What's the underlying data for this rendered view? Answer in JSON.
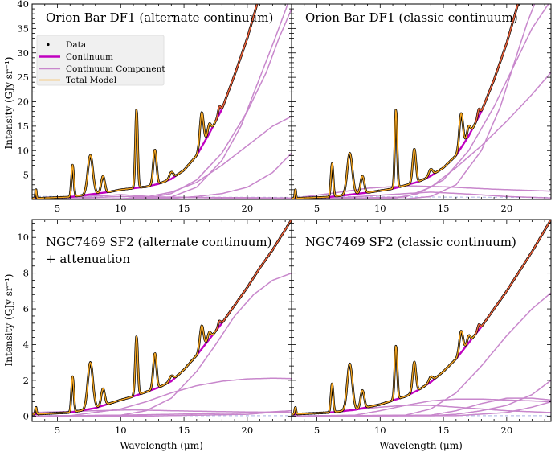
{
  "chart_data": [
    {
      "type": "line",
      "title": "Orion Bar DF1 (alternate continuum)",
      "title_line2": "",
      "xlabel": "",
      "ylabel": "Intensity (GJy sr⁻¹)",
      "xlim": [
        3,
        23.5
      ],
      "ylim": [
        0,
        40
      ],
      "xticks": [
        5,
        10,
        15,
        20
      ],
      "yticks": [
        5,
        10,
        15,
        20,
        25,
        30,
        35,
        40
      ],
      "legend": {
        "position": "upper-left",
        "entries": [
          "Data",
          "Continuum",
          "Continuum Component",
          "Total Model"
        ]
      },
      "features": [
        {
          "x": 3.3,
          "h": 2.0,
          "w": 0.04
        },
        {
          "x": 6.2,
          "h": 6.5,
          "w": 0.09
        },
        {
          "x": 7.6,
          "h": 8.0,
          "w": 0.2
        },
        {
          "x": 8.6,
          "h": 3.4,
          "w": 0.14
        },
        {
          "x": 11.25,
          "h": 16.0,
          "w": 0.09
        },
        {
          "x": 12.7,
          "h": 7.2,
          "w": 0.13
        },
        {
          "x": 14.0,
          "h": 1.4,
          "w": 0.15
        },
        {
          "x": 16.4,
          "h": 7.0,
          "w": 0.14
        },
        {
          "x": 17.0,
          "h": 2.0,
          "w": 0.12
        },
        {
          "x": 17.8,
          "h": 1.5,
          "w": 0.1
        }
      ],
      "continuum": [
        [
          3,
          0.2
        ],
        [
          6,
          0.5
        ],
        [
          9,
          1.5
        ],
        [
          10,
          2.0
        ],
        [
          11,
          2.3
        ],
        [
          12,
          2.6
        ],
        [
          13,
          3.2
        ],
        [
          14,
          4.2
        ],
        [
          15,
          6.0
        ],
        [
          16,
          9.0
        ],
        [
          17,
          13.5
        ],
        [
          18,
          18.5
        ],
        [
          19,
          25.5
        ],
        [
          20,
          33.0
        ],
        [
          21,
          42.0
        ]
      ],
      "components": [
        [
          [
            3,
            0.2
          ],
          [
            8,
            0.4
          ],
          [
            10,
            0.6
          ],
          [
            12,
            0.5
          ],
          [
            15,
            0.4
          ],
          [
            20,
            0.2
          ],
          [
            23.5,
            0.1
          ]
        ],
        [
          [
            3,
            0.3
          ],
          [
            9,
            0.8
          ],
          [
            10,
            1.0
          ],
          [
            11,
            0.8
          ],
          [
            13,
            0.5
          ],
          [
            17,
            0.4
          ],
          [
            23.5,
            0.3
          ]
        ],
        [
          [
            3,
            0
          ],
          [
            10,
            0.1
          ],
          [
            12,
            0.5
          ],
          [
            14,
            1.5
          ],
          [
            16,
            3.5
          ],
          [
            18,
            7.0
          ],
          [
            20,
            11.0
          ],
          [
            22,
            15.0
          ],
          [
            23.5,
            17.0
          ]
        ],
        [
          [
            3,
            0
          ],
          [
            14,
            0.2
          ],
          [
            16,
            0.6
          ],
          [
            18,
            1.2
          ],
          [
            20,
            2.5
          ],
          [
            22,
            5.5
          ],
          [
            23.5,
            9.5
          ]
        ],
        [
          [
            3,
            0
          ],
          [
            12,
            0.2
          ],
          [
            14,
            1.2
          ],
          [
            16,
            4.0
          ],
          [
            18,
            9.5
          ],
          [
            20,
            18.0
          ],
          [
            21.5,
            26.0
          ],
          [
            22.5,
            33.0
          ],
          [
            23.5,
            39.0
          ]
        ],
        [
          [
            3,
            0
          ],
          [
            12,
            0.1
          ],
          [
            14,
            0.5
          ],
          [
            16,
            2.5
          ],
          [
            18,
            8.0
          ],
          [
            19.5,
            15.0
          ],
          [
            21,
            25.0
          ],
          [
            22.2,
            33.0
          ],
          [
            23.2,
            40.0
          ]
        ]
      ],
      "dashed": [
        [
          3,
          0.6
        ],
        [
          23.5,
          0.4
        ]
      ]
    },
    {
      "type": "line",
      "title": "Orion Bar DF1 (classic continuum)",
      "title_line2": "",
      "xlabel": "",
      "ylabel": "",
      "xlim": [
        3,
        23.5
      ],
      "ylim": [
        0,
        40
      ],
      "xticks": [
        5,
        10,
        15,
        20
      ],
      "yticks": [
        5,
        10,
        15,
        20,
        25,
        30,
        35,
        40
      ],
      "features": [
        {
          "x": 3.3,
          "h": 2.0,
          "w": 0.04
        },
        {
          "x": 6.2,
          "h": 6.8,
          "w": 0.09
        },
        {
          "x": 7.6,
          "h": 8.5,
          "w": 0.2
        },
        {
          "x": 8.6,
          "h": 3.5,
          "w": 0.14
        },
        {
          "x": 11.25,
          "h": 16.0,
          "w": 0.09
        },
        {
          "x": 12.7,
          "h": 7.0,
          "w": 0.13
        },
        {
          "x": 14.0,
          "h": 1.4,
          "w": 0.15
        },
        {
          "x": 16.4,
          "h": 7.0,
          "w": 0.14
        },
        {
          "x": 17.0,
          "h": 2.0,
          "w": 0.12
        },
        {
          "x": 17.8,
          "h": 1.5,
          "w": 0.1
        }
      ],
      "continuum": [
        [
          3,
          0.2
        ],
        [
          6,
          0.5
        ],
        [
          9,
          1.4
        ],
        [
          11,
          2.2
        ],
        [
          13,
          3.6
        ],
        [
          14,
          4.8
        ],
        [
          15,
          6.5
        ],
        [
          16,
          9.0
        ],
        [
          17,
          13.0
        ],
        [
          18,
          18.0
        ],
        [
          19,
          24.5
        ],
        [
          20,
          32.0
        ],
        [
          21,
          41.0
        ]
      ],
      "components": [
        [
          [
            3,
            0.2
          ],
          [
            6,
            1.2
          ],
          [
            9,
            2.3
          ],
          [
            12,
            2.8
          ],
          [
            15,
            2.6
          ],
          [
            19,
            2.1
          ],
          [
            23.5,
            1.7
          ]
        ],
        [
          [
            3,
            0
          ],
          [
            6,
            0.2
          ],
          [
            9,
            0.7
          ],
          [
            12,
            1.2
          ],
          [
            14,
            1.5
          ],
          [
            17,
            1.1
          ],
          [
            20,
            0.6
          ],
          [
            23.5,
            0.3
          ]
        ],
        [
          [
            3,
            0
          ],
          [
            12,
            0.5
          ],
          [
            14,
            2.5
          ],
          [
            16,
            6.5
          ],
          [
            18,
            11.0
          ],
          [
            20,
            16.0
          ],
          [
            22,
            21.5
          ],
          [
            23.5,
            26.0
          ]
        ],
        [
          [
            3,
            0
          ],
          [
            11,
            0.2
          ],
          [
            13,
            1.2
          ],
          [
            15,
            4.0
          ],
          [
            17,
            10.0
          ],
          [
            19,
            19.0
          ],
          [
            20.5,
            27.0
          ],
          [
            22,
            35.0
          ],
          [
            23.3,
            40.0
          ]
        ],
        [
          [
            3,
            0
          ],
          [
            12,
            0.1
          ],
          [
            14,
            0.6
          ],
          [
            16,
            3.0
          ],
          [
            18,
            10.0
          ],
          [
            19.5,
            19.0
          ],
          [
            20.6,
            28.0
          ],
          [
            21.6,
            36.0
          ],
          [
            22.2,
            40.0
          ]
        ]
      ],
      "dashed": [
        [
          3,
          0.6
        ],
        [
          23.5,
          0.4
        ]
      ]
    },
    {
      "type": "line",
      "title": "NGC7469 SF2 (alternate continuum)",
      "title_line2": "+ attenuation",
      "xlabel": "Wavelength (μm)",
      "ylabel": "Intensity (GJy sr⁻¹)",
      "xlim": [
        3,
        23.5
      ],
      "ylim": [
        -0.3,
        11
      ],
      "xticks": [
        5,
        10,
        15,
        20
      ],
      "yticks": [
        0,
        2,
        4,
        6,
        8,
        10
      ],
      "features": [
        {
          "x": 3.3,
          "h": 0.4,
          "w": 0.05
        },
        {
          "x": 6.2,
          "h": 2.0,
          "w": 0.09
        },
        {
          "x": 7.6,
          "h": 2.6,
          "w": 0.2
        },
        {
          "x": 8.6,
          "h": 0.95,
          "w": 0.14
        },
        {
          "x": 11.25,
          "h": 3.3,
          "w": 0.1
        },
        {
          "x": 12.7,
          "h": 2.0,
          "w": 0.13
        },
        {
          "x": 14.0,
          "h": 0.3,
          "w": 0.15
        },
        {
          "x": 16.4,
          "h": 1.3,
          "w": 0.14
        },
        {
          "x": 17.0,
          "h": 0.4,
          "w": 0.12
        },
        {
          "x": 17.8,
          "h": 0.3,
          "w": 0.1
        }
      ],
      "continuum": [
        [
          3,
          0.1
        ],
        [
          6,
          0.2
        ],
        [
          8,
          0.45
        ],
        [
          10,
          0.9
        ],
        [
          11,
          1.1
        ],
        [
          12,
          1.35
        ],
        [
          13,
          1.6
        ],
        [
          14,
          1.95
        ],
        [
          15,
          2.6
        ],
        [
          16,
          3.4
        ],
        [
          17,
          4.3
        ],
        [
          18,
          5.2
        ],
        [
          19,
          6.2
        ],
        [
          20,
          7.2
        ],
        [
          21,
          8.3
        ],
        [
          22,
          9.3
        ],
        [
          23.5,
          11.0
        ]
      ],
      "components": [
        [
          [
            3,
            0
          ],
          [
            6,
            0.02
          ],
          [
            10,
            0.4
          ],
          [
            12,
            0.8
          ],
          [
            14,
            1.3
          ],
          [
            16,
            1.7
          ],
          [
            18,
            1.95
          ],
          [
            20,
            2.08
          ],
          [
            22,
            2.12
          ],
          [
            23.5,
            2.1
          ]
        ],
        [
          [
            3,
            0
          ],
          [
            10,
            0.05
          ],
          [
            12,
            0.3
          ],
          [
            14,
            1.0
          ],
          [
            16,
            2.5
          ],
          [
            17.5,
            4.0
          ],
          [
            19,
            5.6
          ],
          [
            20.5,
            6.8
          ],
          [
            22,
            7.6
          ],
          [
            23.5,
            8.0
          ]
        ],
        [
          [
            3,
            0.2
          ],
          [
            8,
            0.3
          ],
          [
            11,
            0.35
          ],
          [
            14,
            0.3
          ],
          [
            18,
            0.25
          ],
          [
            23.5,
            0.2
          ]
        ],
        [
          [
            3,
            0
          ],
          [
            10,
            0.05
          ],
          [
            14,
            0.1
          ],
          [
            18,
            0.15
          ],
          [
            21,
            0.2
          ],
          [
            23.5,
            0.3
          ]
        ],
        [
          [
            3,
            0
          ],
          [
            12,
            0
          ],
          [
            16,
            0.05
          ],
          [
            20,
            0.1
          ],
          [
            23.5,
            0.3
          ]
        ]
      ],
      "dashed": [
        [
          3,
          0.02
        ],
        [
          23.5,
          0.02
        ]
      ]
    },
    {
      "type": "line",
      "title": "NGC7469 SF2 (classic continuum)",
      "title_line2": "",
      "xlabel": "Wavelength (μm)",
      "ylabel": "",
      "xlim": [
        3,
        23.5
      ],
      "ylim": [
        -0.3,
        11
      ],
      "xticks": [
        5,
        10,
        15,
        20
      ],
      "yticks": [
        0,
        2,
        4,
        6,
        8,
        10
      ],
      "features": [
        {
          "x": 3.3,
          "h": 0.4,
          "w": 0.05
        },
        {
          "x": 6.2,
          "h": 1.6,
          "w": 0.09
        },
        {
          "x": 7.6,
          "h": 2.6,
          "w": 0.2
        },
        {
          "x": 8.6,
          "h": 1.0,
          "w": 0.14
        },
        {
          "x": 11.25,
          "h": 3.0,
          "w": 0.1
        },
        {
          "x": 12.7,
          "h": 1.7,
          "w": 0.13
        },
        {
          "x": 14.0,
          "h": 0.3,
          "w": 0.15
        },
        {
          "x": 16.4,
          "h": 1.2,
          "w": 0.14
        },
        {
          "x": 17.0,
          "h": 0.4,
          "w": 0.12
        },
        {
          "x": 17.8,
          "h": 0.3,
          "w": 0.1
        }
      ],
      "continuum": [
        [
          3,
          0.1
        ],
        [
          6,
          0.2
        ],
        [
          8,
          0.35
        ],
        [
          10,
          0.65
        ],
        [
          12,
          1.1
        ],
        [
          13,
          1.45
        ],
        [
          14,
          1.9
        ],
        [
          15,
          2.5
        ],
        [
          16,
          3.2
        ],
        [
          17,
          4.1
        ],
        [
          18,
          5.0
        ],
        [
          19,
          6.0
        ],
        [
          20,
          7.0
        ],
        [
          21,
          8.1
        ],
        [
          22,
          9.2
        ],
        [
          23.5,
          11.0
        ]
      ],
      "components": [
        [
          [
            3,
            0.05
          ],
          [
            6,
            0.2
          ],
          [
            8,
            0.35
          ],
          [
            10,
            0.5
          ],
          [
            12,
            0.6
          ],
          [
            14,
            0.6
          ],
          [
            16,
            0.5
          ],
          [
            18,
            0.4
          ],
          [
            20,
            0.3
          ],
          [
            23.5,
            0.2
          ]
        ],
        [
          [
            3,
            0
          ],
          [
            8,
            0.05
          ],
          [
            10,
            0.3
          ],
          [
            12,
            0.6
          ],
          [
            14,
            0.85
          ],
          [
            16,
            0.95
          ],
          [
            18,
            0.95
          ],
          [
            20,
            0.9
          ],
          [
            22,
            0.85
          ],
          [
            23.5,
            0.8
          ]
        ],
        [
          [
            3,
            0
          ],
          [
            12,
            0.05
          ],
          [
            14,
            0.4
          ],
          [
            16,
            1.3
          ],
          [
            18,
            2.8
          ],
          [
            20,
            4.5
          ],
          [
            22,
            6.0
          ],
          [
            23.5,
            6.9
          ]
        ],
        [
          [
            3,
            0
          ],
          [
            14,
            0.02
          ],
          [
            16,
            0.1
          ],
          [
            18,
            0.3
          ],
          [
            20,
            0.6
          ],
          [
            22,
            1.2
          ],
          [
            23.5,
            2.0
          ]
        ],
        [
          [
            3,
            0
          ],
          [
            14,
            0.05
          ],
          [
            16,
            0.3
          ],
          [
            18,
            0.7
          ],
          [
            20,
            1.0
          ],
          [
            22,
            1.0
          ],
          [
            23.5,
            0.9
          ]
        ],
        [
          [
            3,
            0
          ],
          [
            16,
            0.02
          ],
          [
            20,
            0.2
          ],
          [
            22,
            0.5
          ],
          [
            23.5,
            0.8
          ]
        ]
      ],
      "dashed": [
        [
          3,
          0.02
        ],
        [
          23.5,
          0.02
        ]
      ]
    }
  ],
  "colors": {
    "data": "#000000",
    "continuum": "#c000c0",
    "component": "#c887cc",
    "total_model": "#f5a623",
    "total_model_hi": "#f05a3c",
    "dashed": "#b9c0e8",
    "legend_bg": "#f0f0f0"
  }
}
